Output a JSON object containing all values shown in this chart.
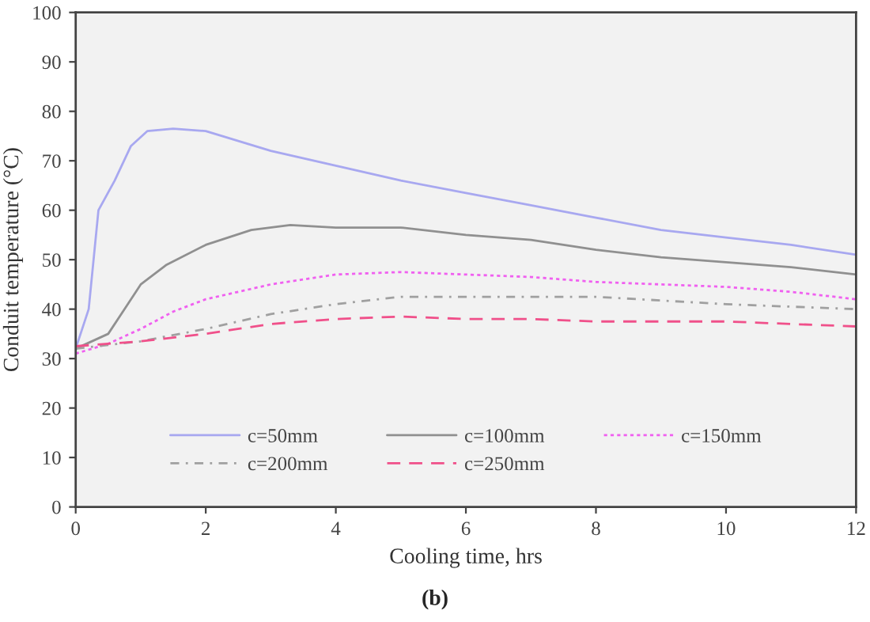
{
  "chart_data": {
    "type": "line",
    "xlabel": "Cooling time, hrs",
    "ylabel": "Conduit temperature (°C)",
    "xlim": [
      0,
      12
    ],
    "xticks": [
      0,
      2,
      4,
      6,
      8,
      10,
      12
    ],
    "ylim": [
      0,
      100
    ],
    "yticks": [
      0,
      10,
      20,
      30,
      40,
      50,
      60,
      70,
      80,
      90,
      100
    ],
    "grid": false,
    "legend": "bottom",
    "marker": "none",
    "annotations": [
      "(b)"
    ],
    "series": [
      {
        "name": "c=50mm",
        "color": "#a8a8f0",
        "line_style": "solid",
        "x": [
          0,
          0.2,
          0.35,
          0.6,
          0.85,
          1.1,
          1.5,
          2,
          3,
          4,
          5,
          6,
          7,
          8,
          9,
          10,
          11,
          12
        ],
        "values": [
          32,
          40,
          60,
          66,
          73,
          76,
          76.5,
          76,
          72,
          69,
          66,
          63.5,
          61,
          58.5,
          56,
          54.5,
          53,
          51
        ]
      },
      {
        "name": "c=100mm",
        "color": "#909090",
        "line_style": "solid",
        "x": [
          0,
          0.5,
          0.75,
          1,
          1.4,
          2,
          2.7,
          3.3,
          4,
          5,
          6,
          7,
          8,
          9,
          10,
          11,
          12
        ],
        "values": [
          32,
          35,
          40,
          45,
          49,
          53,
          56,
          57,
          56.5,
          56.5,
          55,
          54,
          52,
          50.5,
          49.5,
          48.5,
          47
        ]
      },
      {
        "name": "c=150mm",
        "color": "#f060f0",
        "line_style": "dotted",
        "x": [
          0,
          0.5,
          1,
          1.5,
          2,
          3,
          4,
          5,
          6,
          7,
          8,
          9,
          10,
          11,
          12
        ],
        "values": [
          31,
          33,
          36,
          39.5,
          42,
          45,
          47,
          47.5,
          47,
          46.5,
          45.5,
          45,
          44.5,
          43.5,
          42
        ]
      },
      {
        "name": "c=200mm",
        "color": "#a0a0a0",
        "line_style": "dashdot",
        "x": [
          0,
          1,
          2,
          3,
          4,
          5,
          6,
          8,
          10,
          12
        ],
        "values": [
          32,
          33.5,
          36,
          39,
          41,
          42.5,
          42.5,
          42.5,
          41,
          40
        ]
      },
      {
        "name": "c=250mm",
        "color": "#f0508a",
        "line_style": "dashed",
        "x": [
          0,
          1,
          2,
          3,
          4,
          5,
          6,
          7,
          8,
          10,
          11,
          12
        ],
        "values": [
          32.5,
          33.5,
          35,
          37,
          38,
          38.5,
          38,
          38,
          37.5,
          37.5,
          37,
          36.5
        ]
      }
    ]
  }
}
